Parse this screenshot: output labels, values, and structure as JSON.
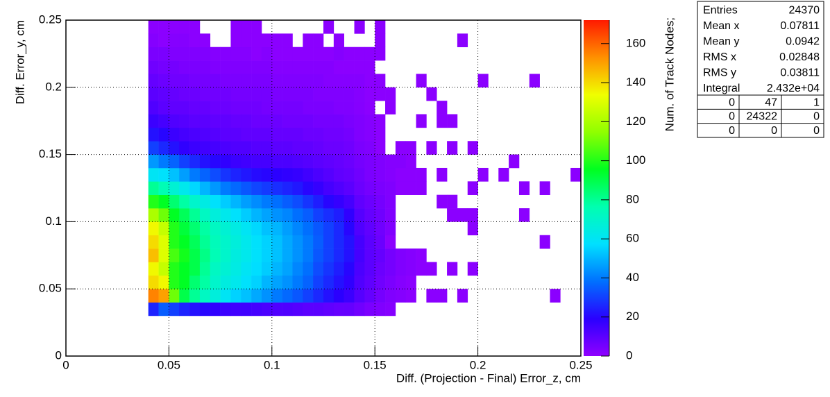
{
  "chart_data": {
    "type": "heatmap",
    "xlabel": "Diff. (Projection - Final) Error_z, cm",
    "ylabel": "Diff. Error_y, cm",
    "zlabel": "Num. of Track Nodes;",
    "xlim": [
      0,
      0.25
    ],
    "ylim": [
      0,
      0.25
    ],
    "zlim": [
      0,
      172
    ],
    "xticks": [
      0,
      0.05,
      0.1,
      0.15,
      0.2,
      0.25
    ],
    "yticks": [
      0,
      0.05,
      0.1,
      0.15,
      0.2,
      0.25
    ],
    "zticks": [
      0,
      20,
      40,
      60,
      80,
      100,
      120,
      140,
      160
    ],
    "grid": true,
    "colorscale": [
      "#9000ff",
      "#2a00ff",
      "#0070ff",
      "#00e0ff",
      "#00ffb0",
      "#00ff20",
      "#90ff00",
      "#f0ff00",
      "#ff9000",
      "#ff1a00"
    ],
    "xbins": [
      0.04,
      0.045,
      0.05,
      0.055,
      0.06,
      0.065,
      0.07,
      0.075,
      0.08,
      0.085,
      0.09,
      0.095,
      0.1,
      0.105,
      0.11,
      0.115,
      0.12,
      0.125,
      0.13,
      0.135,
      0.14,
      0.145,
      0.15,
      0.155,
      0.16,
      0.165,
      0.17,
      0.175,
      0.18,
      0.185,
      0.19,
      0.195,
      0.2,
      0.205,
      0.21,
      0.215,
      0.22,
      0.225,
      0.23,
      0.235,
      0.24,
      0.245,
      0.25
    ],
    "ybins": [
      0.03,
      0.04,
      0.05,
      0.06,
      0.07,
      0.08,
      0.09,
      0.1,
      0.11,
      0.12,
      0.13,
      0.14,
      0.15,
      0.16,
      0.17,
      0.18,
      0.19,
      0.2,
      0.21,
      0.22,
      0.23,
      0.24,
      0.25
    ],
    "z": [
      [
        25,
        35,
        30,
        25,
        22,
        20,
        18,
        16,
        15,
        15,
        14,
        13,
        12,
        12,
        11,
        10,
        10,
        9,
        8,
        8,
        6,
        4,
        3,
        2,
        0,
        0,
        0,
        0,
        0,
        0,
        0,
        0,
        0,
        0,
        0,
        0,
        0,
        0,
        0,
        0,
        0,
        0
      ],
      [
        155,
        150,
        110,
        90,
        80,
        72,
        66,
        60,
        55,
        52,
        48,
        44,
        40,
        37,
        34,
        30,
        26,
        22,
        19,
        16,
        11,
        8,
        5,
        3,
        2,
        1,
        0,
        1,
        1,
        0,
        1,
        0,
        0,
        0,
        0,
        0,
        0,
        0,
        0,
        1,
        0,
        0
      ],
      [
        140,
        135,
        100,
        95,
        85,
        78,
        70,
        65,
        62,
        58,
        55,
        50,
        47,
        44,
        40,
        36,
        30,
        26,
        22,
        18,
        12,
        9,
        6,
        4,
        2,
        1,
        0,
        0,
        0,
        0,
        0,
        0,
        0,
        0,
        0,
        0,
        0,
        0,
        0,
        0,
        0,
        0
      ],
      [
        135,
        125,
        100,
        95,
        90,
        80,
        72,
        68,
        64,
        60,
        57,
        54,
        50,
        47,
        42,
        38,
        32,
        28,
        24,
        20,
        13,
        10,
        7,
        5,
        3,
        2,
        1,
        1,
        0,
        1,
        0,
        1,
        0,
        0,
        0,
        0,
        0,
        0,
        0,
        0,
        0,
        0
      ],
      [
        145,
        130,
        105,
        98,
        90,
        82,
        75,
        70,
        65,
        62,
        58,
        55,
        52,
        48,
        44,
        40,
        34,
        30,
        26,
        22,
        14,
        10,
        8,
        5,
        3,
        2,
        1,
        0,
        0,
        0,
        0,
        0,
        0,
        0,
        0,
        0,
        0,
        0,
        0,
        0,
        0,
        0
      ],
      [
        140,
        130,
        100,
        95,
        88,
        80,
        74,
        70,
        66,
        62,
        58,
        55,
        52,
        48,
        44,
        40,
        35,
        30,
        26,
        22,
        14,
        10,
        7,
        1,
        0,
        0,
        0,
        0,
        0,
        0,
        0,
        0,
        0,
        0,
        0,
        0,
        0,
        0,
        1,
        0,
        0,
        0
      ],
      [
        135,
        125,
        100,
        92,
        85,
        78,
        72,
        68,
        64,
        60,
        56,
        52,
        50,
        46,
        42,
        38,
        34,
        30,
        26,
        20,
        12,
        9,
        6,
        3,
        0,
        0,
        0,
        0,
        0,
        0,
        0,
        1,
        0,
        0,
        0,
        0,
        0,
        0,
        0,
        0,
        0,
        0
      ],
      [
        120,
        110,
        95,
        88,
        80,
        72,
        66,
        62,
        58,
        54,
        50,
        47,
        44,
        42,
        38,
        35,
        30,
        27,
        24,
        18,
        11,
        8,
        6,
        3,
        0,
        0,
        0,
        0,
        0,
        1,
        1,
        1,
        0,
        0,
        0,
        0,
        1,
        0,
        0,
        0,
        0,
        0
      ],
      [
        100,
        95,
        85,
        78,
        70,
        64,
        58,
        54,
        50,
        46,
        43,
        40,
        38,
        35,
        32,
        28,
        24,
        20,
        17,
        14,
        9,
        7,
        5,
        3,
        0,
        0,
        0,
        0,
        1,
        1,
        0,
        0,
        0,
        0,
        0,
        0,
        0,
        0,
        0,
        0,
        0,
        0
      ],
      [
        80,
        75,
        68,
        62,
        56,
        50,
        45,
        40,
        37,
        34,
        31,
        29,
        27,
        25,
        23,
        20,
        17,
        14,
        12,
        10,
        7,
        5,
        4,
        3,
        1,
        1,
        1,
        0,
        0,
        0,
        0,
        1,
        0,
        0,
        0,
        0,
        1,
        0,
        1,
        0,
        0,
        0
      ],
      [
        60,
        58,
        52,
        46,
        40,
        36,
        32,
        28,
        25,
        23,
        21,
        20,
        19,
        18,
        17,
        15,
        13,
        11,
        9,
        8,
        6,
        4,
        3,
        2,
        1,
        1,
        1,
        0,
        1,
        0,
        0,
        0,
        1,
        0,
        1,
        0,
        0,
        0,
        0,
        0,
        0,
        1
      ],
      [
        45,
        40,
        36,
        30,
        26,
        22,
        20,
        18,
        16,
        15,
        14,
        14,
        13,
        13,
        12,
        11,
        10,
        9,
        8,
        7,
        5,
        4,
        3,
        2,
        2,
        1,
        0,
        0,
        0,
        0,
        0,
        0,
        0,
        0,
        0,
        1,
        0,
        0,
        0,
        0,
        0,
        0
      ],
      [
        30,
        26,
        22,
        18,
        16,
        15,
        14,
        13,
        12,
        12,
        11,
        11,
        10,
        10,
        9,
        9,
        8,
        7,
        7,
        6,
        4,
        3,
        1,
        0,
        1,
        1,
        0,
        1,
        0,
        1,
        0,
        1,
        0,
        0,
        0,
        0,
        0,
        0,
        0,
        0,
        0,
        0
      ],
      [
        22,
        20,
        16,
        14,
        13,
        12,
        11,
        10,
        10,
        9,
        9,
        9,
        8,
        8,
        8,
        7,
        7,
        6,
        6,
        5,
        3,
        2,
        1,
        0,
        0,
        0,
        0,
        0,
        0,
        0,
        0,
        0,
        0,
        0,
        0,
        0,
        0,
        0,
        0,
        0,
        0,
        0
      ],
      [
        16,
        14,
        12,
        11,
        10,
        10,
        9,
        9,
        8,
        8,
        7,
        7,
        7,
        6,
        6,
        6,
        5,
        5,
        5,
        4,
        3,
        2,
        1,
        0,
        0,
        0,
        1,
        0,
        1,
        1,
        0,
        0,
        0,
        0,
        0,
        0,
        0,
        0,
        0,
        0,
        0,
        0
      ],
      [
        12,
        10,
        9,
        9,
        8,
        8,
        7,
        7,
        6,
        6,
        6,
        5,
        5,
        5,
        5,
        4,
        4,
        4,
        3,
        3,
        2,
        1,
        0,
        1,
        0,
        0,
        0,
        0,
        1,
        0,
        0,
        0,
        0,
        0,
        0,
        0,
        0,
        0,
        0,
        0,
        0,
        0
      ],
      [
        10,
        9,
        8,
        7,
        7,
        6,
        6,
        6,
        5,
        5,
        5,
        5,
        4,
        4,
        4,
        4,
        3,
        3,
        3,
        3,
        2,
        1,
        1,
        1,
        0,
        0,
        0,
        1,
        0,
        0,
        0,
        0,
        0,
        0,
        0,
        0,
        0,
        0,
        0,
        0,
        0,
        0
      ],
      [
        8,
        7,
        6,
        6,
        5,
        5,
        5,
        4,
        4,
        4,
        4,
        4,
        3,
        3,
        3,
        3,
        3,
        2,
        2,
        2,
        2,
        1,
        1,
        0,
        0,
        0,
        1,
        0,
        0,
        0,
        0,
        0,
        1,
        0,
        0,
        0,
        0,
        1,
        0,
        0,
        0,
        0
      ],
      [
        6,
        5,
        5,
        4,
        4,
        4,
        3,
        3,
        3,
        3,
        3,
        3,
        2,
        2,
        2,
        2,
        2,
        2,
        1,
        1,
        1,
        1,
        0,
        0,
        0,
        0,
        0,
        0,
        0,
        0,
        0,
        0,
        0,
        0,
        0,
        0,
        0,
        0,
        0,
        0,
        0,
        0
      ],
      [
        4,
        4,
        3,
        3,
        3,
        3,
        2,
        2,
        2,
        2,
        1,
        2,
        1,
        1,
        1,
        1,
        1,
        1,
        2,
        1,
        1,
        1,
        1,
        0,
        0,
        0,
        0,
        0,
        0,
        0,
        0,
        0,
        0,
        0,
        0,
        0,
        0,
        0,
        0,
        0,
        0,
        0
      ],
      [
        2,
        1,
        2,
        2,
        1,
        1,
        0,
        0,
        1,
        1,
        1,
        1,
        1,
        1,
        0,
        1,
        1,
        0,
        1,
        0,
        0,
        0,
        1,
        0,
        0,
        0,
        0,
        0,
        0,
        0,
        1,
        0,
        0,
        0,
        0,
        0,
        0,
        0,
        0,
        0,
        0,
        0
      ],
      [
        1,
        1,
        1,
        1,
        1,
        0,
        0,
        0,
        1,
        1,
        1,
        0,
        0,
        0,
        0,
        0,
        0,
        1,
        0,
        0,
        1,
        0,
        1,
        0,
        0,
        0,
        0,
        0,
        0,
        0,
        0,
        0,
        0,
        0,
        0,
        0,
        0,
        0,
        0,
        0,
        0,
        0
      ]
    ],
    "stats": [
      [
        "Entries",
        "24370"
      ],
      [
        "Mean x",
        "0.07811"
      ],
      [
        "Mean y",
        "0.0942"
      ],
      [
        "RMS x",
        "0.02848"
      ],
      [
        "RMS y",
        "0.03811"
      ],
      [
        "Integral",
        "2.432e+04"
      ]
    ],
    "overflow": [
      [
        "0",
        "47",
        "1"
      ],
      [
        "0",
        "24322",
        "0"
      ],
      [
        "0",
        "0",
        "0"
      ]
    ]
  }
}
